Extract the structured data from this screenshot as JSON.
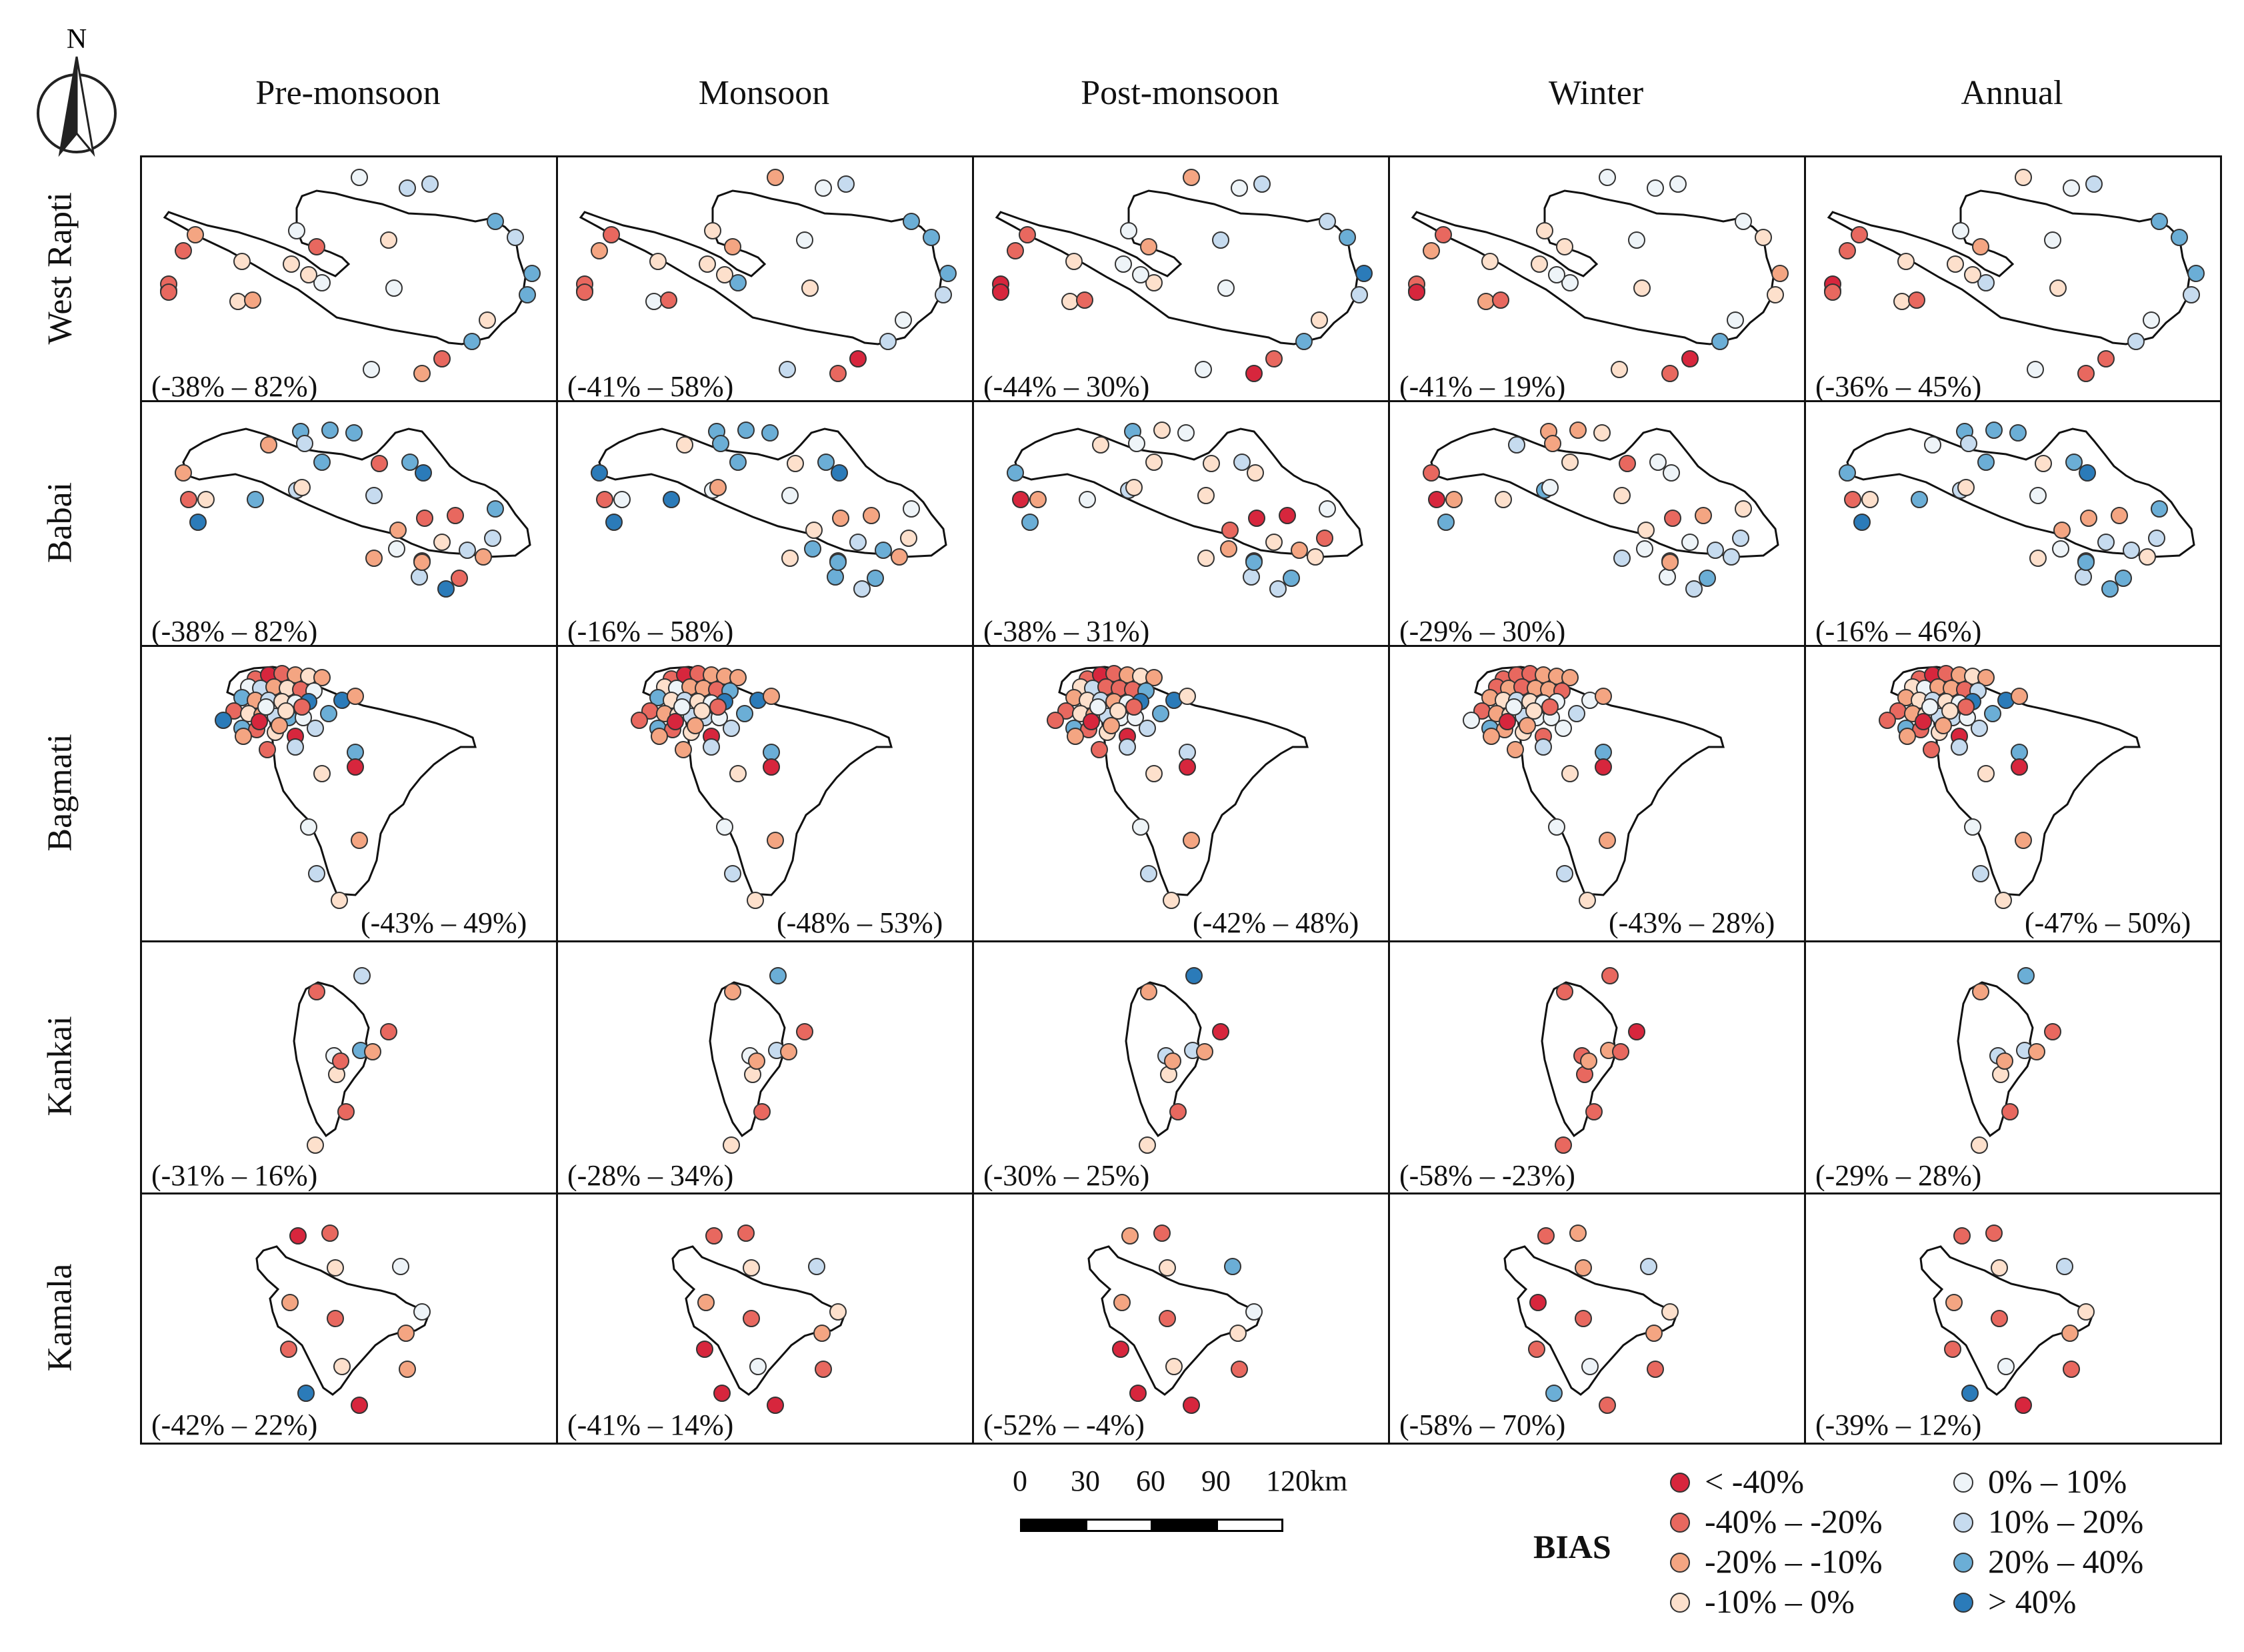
{
  "north_label": "N",
  "columns": [
    "Pre-monsoon",
    "Monsoon",
    "Post-monsoon",
    "Winter",
    "Annual"
  ],
  "rows": [
    {
      "name": "West Rapti",
      "shape": "westrapti",
      "ranges": [
        "(-38% – 82%)",
        "(-41% – 58%)",
        "(-44% – 30%)",
        "(-41% – 19%)",
        "(-36% – 45%)"
      ]
    },
    {
      "name": "Babai",
      "shape": "babai",
      "ranges": [
        "(-38% – 82%)",
        "(-16% – 58%)",
        "(-38% – 31%)",
        "(-29% – 30%)",
        "(-16% – 46%)"
      ]
    },
    {
      "name": "Bagmati",
      "shape": "bagmati",
      "ranges": [
        "(-43% – 49%)",
        "(-48% – 53%)",
        "(-42% – 48%)",
        "(-43% – 28%)",
        "(-47% – 50%)"
      ]
    },
    {
      "name": "Kankai",
      "shape": "kankai",
      "ranges": [
        "(-31% – 16%)",
        "(-28% – 34%)",
        "(-30% – 25%)",
        "(-58% – -23%)",
        "(-29% – 28%)"
      ]
    },
    {
      "name": "Kamala",
      "shape": "kamala",
      "ranges": [
        "(-42% – 22%)",
        "(-41% – 14%)",
        "(-52% – -4%)",
        "(-58% – 70%)",
        "(-39% – 12%)"
      ]
    }
  ],
  "scale": {
    "ticks": [
      "0",
      "30",
      "60",
      "90",
      "120"
    ],
    "unit": "km"
  },
  "legend": {
    "title": "BIAS",
    "classes": [
      {
        "label": "< -40%",
        "color": "#d7263d"
      },
      {
        "label": "-40% – -20%",
        "color": "#e8685f"
      },
      {
        "label": "-20% – -10%",
        "color": "#f4a582"
      },
      {
        "label": "-10% – 0%",
        "color": "#fde0cc"
      },
      {
        "label": "0% – 10%",
        "color": "#eef4f8"
      },
      {
        "label": "10% – 20%",
        "color": "#c6dbef"
      },
      {
        "label": "20% – 40%",
        "color": "#6baed6"
      },
      {
        "label": "> 40%",
        "color": "#2b7bb9"
      }
    ]
  },
  "stations": {
    "westrapti": [
      [
        4,
        2,
        2,
        4,
        3
      ],
      [
        5,
        5,
        5,
        4,
        5
      ],
      [
        5,
        4,
        4,
        4,
        4
      ],
      [
        4,
        3,
        4,
        3,
        4
      ],
      [
        2,
        1,
        1,
        1,
        1
      ],
      [
        6,
        6,
        5,
        4,
        6
      ],
      [
        3,
        3,
        4,
        3,
        3
      ],
      [
        5,
        6,
        6,
        3,
        6
      ],
      [
        1,
        2,
        2,
        3,
        2
      ],
      [
        3,
        4,
        5,
        4,
        4
      ],
      [
        6,
        6,
        7,
        2,
        6
      ],
      [
        6,
        5,
        5,
        3,
        5
      ],
      [
        1,
        1,
        3,
        1,
        1
      ],
      [
        4,
        3,
        4,
        3,
        3
      ],
      [
        3,
        3,
        3,
        3,
        3
      ],
      [
        1,
        2,
        1,
        2,
        1
      ],
      [
        4,
        6,
        3,
        4,
        5
      ],
      [
        1,
        1,
        0,
        1,
        0
      ],
      [
        3,
        4,
        3,
        2,
        3
      ],
      [
        6,
        5,
        6,
        6,
        5
      ],
      [
        3,
        4,
        3,
        4,
        4
      ],
      [
        2,
        1,
        1,
        1,
        1
      ],
      [
        1,
        1,
        0,
        0,
        1
      ],
      [
        4,
        5,
        4,
        3,
        4
      ],
      [
        2,
        1,
        0,
        1,
        1
      ],
      [
        3,
        3,
        4,
        4,
        3
      ],
      [
        1,
        0,
        1,
        0,
        1
      ]
    ],
    "babai": [
      [
        2,
        7,
        6,
        1,
        6
      ],
      [
        6,
        6,
        6,
        2,
        6
      ],
      [
        6,
        6,
        3,
        2,
        6
      ],
      [
        6,
        6,
        4,
        3,
        6
      ],
      [
        5,
        6,
        4,
        2,
        5
      ],
      [
        2,
        3,
        3,
        5,
        4
      ],
      [
        6,
        6,
        5,
        4,
        6
      ],
      [
        7,
        7,
        3,
        4,
        7
      ],
      [
        1,
        3,
        3,
        1,
        3
      ],
      [
        6,
        6,
        3,
        3,
        6
      ],
      [
        1,
        1,
        0,
        0,
        1
      ],
      [
        3,
        4,
        2,
        2,
        3
      ],
      [
        7,
        7,
        6,
        6,
        7
      ],
      [
        5,
        4,
        5,
        6,
        5
      ],
      [
        6,
        7,
        4,
        3,
        6
      ],
      [
        5,
        4,
        3,
        3,
        4
      ],
      [
        3,
        2,
        3,
        4,
        3
      ],
      [
        1,
        2,
        0,
        1,
        2
      ],
      [
        1,
        2,
        0,
        2,
        2
      ],
      [
        2,
        3,
        1,
        3,
        2
      ],
      [
        6,
        4,
        4,
        3,
        6
      ],
      [
        5,
        3,
        1,
        5,
        5
      ],
      [
        1,
        2,
        1,
        3,
        2
      ],
      [
        3,
        5,
        3,
        4,
        5
      ],
      [
        2,
        3,
        3,
        5,
        3
      ],
      [
        4,
        6,
        2,
        4,
        4
      ],
      [
        5,
        6,
        5,
        4,
        5
      ],
      [
        2,
        6,
        6,
        2,
        6
      ],
      [
        7,
        5,
        5,
        5,
        6
      ],
      [
        5,
        6,
        2,
        5,
        5
      ],
      [
        2,
        2,
        3,
        5,
        3
      ],
      [
        1,
        6,
        6,
        6,
        6
      ]
    ],
    "bagmati": [
      [
        1,
        1,
        1,
        1,
        1
      ],
      [
        0,
        0,
        0,
        1,
        0
      ],
      [
        1,
        1,
        1,
        1,
        1
      ],
      [
        2,
        2,
        2,
        2,
        2
      ],
      [
        3,
        2,
        3,
        2,
        3
      ],
      [
        2,
        2,
        2,
        2,
        2
      ],
      [
        4,
        3,
        3,
        1,
        3
      ],
      [
        5,
        4,
        5,
        2,
        4
      ],
      [
        2,
        2,
        1,
        1,
        2
      ],
      [
        3,
        2,
        1,
        2,
        2
      ],
      [
        1,
        1,
        1,
        2,
        1
      ],
      [
        4,
        6,
        6,
        1,
        5
      ],
      [
        6,
        6,
        2,
        2,
        2
      ],
      [
        2,
        3,
        3,
        3,
        3
      ],
      [
        5,
        5,
        5,
        5,
        5
      ],
      [
        3,
        3,
        2,
        3,
        3
      ],
      [
        4,
        4,
        4,
        4,
        4
      ],
      [
        7,
        7,
        7,
        4,
        7
      ],
      [
        1,
        1,
        1,
        1,
        1
      ],
      [
        3,
        2,
        3,
        2,
        2
      ],
      [
        2,
        3,
        2,
        3,
        3
      ],
      [
        5,
        5,
        5,
        5,
        5
      ],
      [
        6,
        5,
        4,
        4,
        5
      ],
      [
        4,
        4,
        4,
        4,
        4
      ],
      [
        7,
        1,
        1,
        4,
        1
      ],
      [
        6,
        6,
        6,
        6,
        6
      ],
      [
        1,
        1,
        1,
        2,
        1
      ],
      [
        3,
        3,
        3,
        3,
        3
      ],
      [
        0,
        0,
        0,
        1,
        0
      ],
      [
        5,
        5,
        5,
        4,
        5
      ],
      [
        6,
        6,
        6,
        5,
        6
      ],
      [
        7,
        7,
        7,
        4,
        7
      ],
      [
        2,
        2,
        3,
        2,
        2
      ],
      [
        0,
        0,
        0,
        0,
        0
      ],
      [
        2,
        2,
        2,
        2,
        2
      ],
      [
        1,
        1,
        1,
        1,
        1
      ],
      [
        4,
        4,
        4,
        4,
        4
      ],
      [
        3,
        3,
        3,
        3,
        3
      ],
      [
        2,
        2,
        2,
        2,
        2
      ],
      [
        5,
        5,
        5,
        5,
        5
      ],
      [
        1,
        2,
        1,
        2,
        1
      ],
      [
        6,
        6,
        5,
        6,
        6
      ],
      [
        3,
        3,
        3,
        3,
        3
      ],
      [
        0,
        0,
        0,
        0,
        0
      ],
      [
        4,
        4,
        4,
        4,
        4
      ],
      [
        2,
        2,
        2,
        2,
        2
      ],
      [
        5,
        5,
        5,
        5,
        5
      ],
      [
        3,
        3,
        3,
        3,
        3
      ]
    ],
    "kankai": [
      [
        5,
        6,
        7,
        1,
        6
      ],
      [
        1,
        2,
        2,
        1,
        2
      ],
      [
        4,
        4,
        5,
        1,
        5
      ],
      [
        6,
        5,
        5,
        2,
        5
      ],
      [
        3,
        3,
        3,
        1,
        3
      ],
      [
        1,
        1,
        1,
        1,
        1
      ],
      [
        1,
        2,
        2,
        2,
        2
      ],
      [
        2,
        2,
        2,
        1,
        2
      ],
      [
        1,
        1,
        0,
        0,
        1
      ],
      [
        3,
        3,
        3,
        1,
        3
      ]
    ],
    "kamala": [
      [
        0,
        1,
        2,
        1,
        1
      ],
      [
        1,
        1,
        1,
        2,
        1
      ],
      [
        3,
        3,
        3,
        2,
        3
      ],
      [
        4,
        5,
        6,
        5,
        5
      ],
      [
        2,
        2,
        2,
        0,
        2
      ],
      [
        1,
        0,
        0,
        1,
        1
      ],
      [
        3,
        4,
        3,
        4,
        4
      ],
      [
        2,
        1,
        1,
        1,
        1
      ],
      [
        7,
        0,
        0,
        6,
        7
      ],
      [
        4,
        3,
        4,
        3,
        3
      ],
      [
        1,
        1,
        1,
        1,
        1
      ],
      [
        2,
        2,
        3,
        2,
        2
      ],
      [
        0,
        0,
        0,
        1,
        0
      ]
    ]
  }
}
